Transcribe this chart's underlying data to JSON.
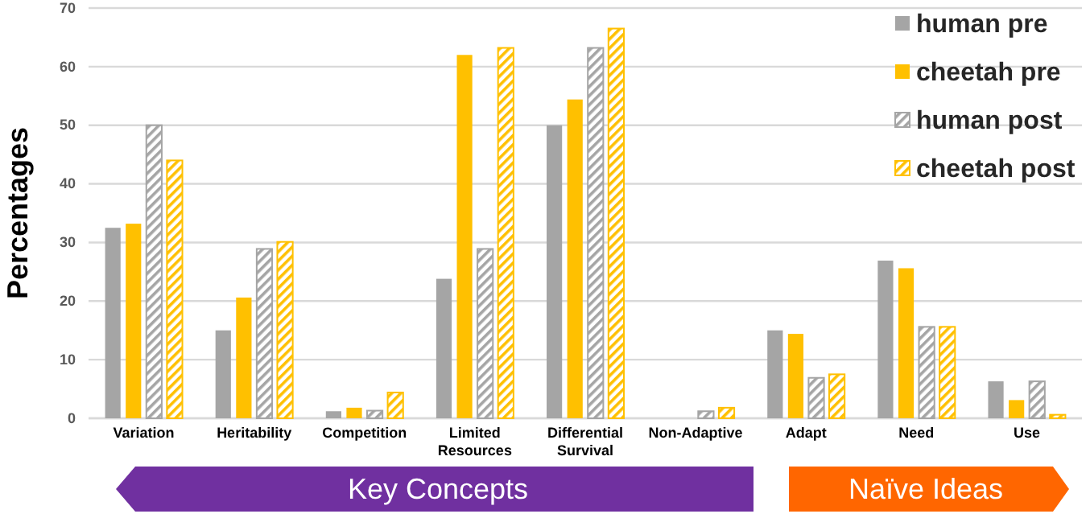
{
  "chart_data": {
    "type": "bar",
    "ylabel": "Percentages",
    "categories": [
      "Variation",
      "Heritability",
      "Competition",
      "Limited Resources",
      "Differential Survival",
      "Non-Adaptive",
      "Adapt",
      "Need",
      "Use"
    ],
    "series": [
      {
        "name": "human pre",
        "color": "#a5a5a5",
        "values": [
          32.5,
          15,
          1.2,
          23.8,
          50,
          0,
          15,
          26.9,
          6.3
        ]
      },
      {
        "name": "cheetah pre",
        "color": "#ffc000",
        "values": [
          33.2,
          20.6,
          1.8,
          62,
          54.4,
          0,
          14.4,
          25.6,
          3.1
        ]
      },
      {
        "name": "human post",
        "color": "#a5a5a5",
        "values": [
          50,
          28.9,
          1.3,
          28.9,
          63.2,
          1.2,
          6.9,
          15.6,
          6.3
        ]
      },
      {
        "name": "cheetah post",
        "color": "#ffc000",
        "values": [
          44,
          30.1,
          4.4,
          63.2,
          66.5,
          1.8,
          7.5,
          15.6,
          0.6
        ]
      }
    ],
    "ylim": [
      0,
      70
    ],
    "yticks": [
      0,
      10,
      20,
      30,
      40,
      50,
      60,
      70
    ],
    "grid": "y",
    "legend": "top right",
    "annotations": [
      "Key Concepts",
      "Naïve Ideas"
    ]
  }
}
